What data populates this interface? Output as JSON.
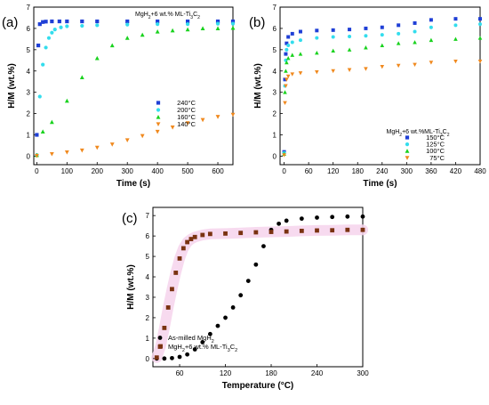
{
  "chart_data": [
    {
      "panel": "(a)",
      "type": "scatter",
      "title": "",
      "annotation": "MgH2+6 wt.% ML-Ti3C2",
      "xlabel": "Time (s)",
      "ylabel": "H/M (wt.%)",
      "xlim": [
        -10,
        650
      ],
      "ylim": [
        -0.4,
        7
      ],
      "xticks": [
        0,
        100,
        200,
        300,
        400,
        500,
        600
      ],
      "yticks": [
        0,
        1,
        2,
        3,
        4,
        5,
        6,
        7
      ],
      "legend": "bottom-right",
      "series": [
        {
          "name": "240°C",
          "color": "#1f3fd6",
          "marker": "square",
          "x": [
            0,
            5,
            10,
            20,
            30,
            50,
            75,
            100,
            150,
            200,
            300,
            400,
            500,
            600,
            650
          ],
          "y": [
            1.0,
            5.2,
            6.2,
            6.3,
            6.32,
            6.33,
            6.33,
            6.33,
            6.33,
            6.33,
            6.33,
            6.33,
            6.33,
            6.33,
            6.33
          ]
        },
        {
          "name": "200°C",
          "color": "#33dded",
          "marker": "circle",
          "x": [
            0,
            10,
            20,
            30,
            40,
            50,
            60,
            80,
            100,
            150,
            200,
            300,
            400,
            500,
            600,
            650
          ],
          "y": [
            0.05,
            2.8,
            4.3,
            5.1,
            5.55,
            5.8,
            5.95,
            6.05,
            6.1,
            6.12,
            6.15,
            6.18,
            6.2,
            6.2,
            6.22,
            6.22
          ]
        },
        {
          "name": "160°C",
          "color": "#19d21e",
          "marker": "triangle-up",
          "x": [
            0,
            20,
            50,
            100,
            150,
            200,
            250,
            300,
            350,
            400,
            450,
            500,
            550,
            600,
            650
          ],
          "y": [
            0.05,
            1.15,
            1.6,
            2.6,
            3.7,
            4.6,
            5.2,
            5.55,
            5.7,
            5.85,
            5.9,
            5.95,
            6.0,
            6.0,
            6.02
          ]
        },
        {
          "name": "140°C",
          "color": "#f0891e",
          "marker": "triangle-down",
          "x": [
            0,
            50,
            100,
            150,
            200,
            250,
            300,
            350,
            400,
            450,
            500,
            550,
            600,
            650
          ],
          "y": [
            0.02,
            0.1,
            0.18,
            0.27,
            0.4,
            0.55,
            0.75,
            0.95,
            1.15,
            1.35,
            1.55,
            1.7,
            1.85,
            1.95
          ]
        }
      ]
    },
    {
      "panel": "(b)",
      "type": "scatter",
      "title": "",
      "annotation": "MgH2+6 wt.%ML-Ti3C2",
      "xlabel": "Time (s)",
      "ylabel": "H/M (wt.%)",
      "xlim": [
        -10,
        480
      ],
      "ylim": [
        -0.4,
        7
      ],
      "xticks": [
        0,
        60,
        120,
        180,
        240,
        300,
        360,
        420,
        480
      ],
      "yticks": [
        0,
        1,
        2,
        3,
        4,
        5,
        6,
        7
      ],
      "legend": "bottom-right",
      "series": [
        {
          "name": "150°C",
          "color": "#1f3fd6",
          "marker": "square",
          "x": [
            0,
            2,
            4,
            6,
            10,
            20,
            40,
            80,
            120,
            160,
            200,
            240,
            280,
            320,
            360,
            420,
            480
          ],
          "y": [
            0.2,
            3.6,
            4.8,
            5.3,
            5.6,
            5.75,
            5.85,
            5.9,
            5.92,
            5.95,
            6.0,
            6.05,
            6.15,
            6.25,
            6.4,
            6.45,
            6.45
          ]
        },
        {
          "name": "125°C",
          "color": "#33dded",
          "marker": "circle",
          "x": [
            0,
            2,
            4,
            6,
            10,
            20,
            40,
            80,
            120,
            160,
            200,
            240,
            280,
            320,
            360,
            420,
            480
          ],
          "y": [
            0.15,
            3.3,
            4.5,
            5.0,
            5.2,
            5.35,
            5.45,
            5.55,
            5.6,
            5.62,
            5.65,
            5.7,
            5.75,
            5.85,
            6.05,
            6.15,
            6.2
          ]
        },
        {
          "name": "100°C",
          "color": "#19d21e",
          "marker": "triangle-up",
          "x": [
            0,
            2,
            4,
            6,
            10,
            20,
            40,
            80,
            120,
            160,
            200,
            240,
            280,
            320,
            360,
            420,
            480
          ],
          "y": [
            0.1,
            3.0,
            4.0,
            4.4,
            4.6,
            4.75,
            4.8,
            4.85,
            4.95,
            5.0,
            5.1,
            5.2,
            5.3,
            5.35,
            5.45,
            5.5,
            5.55
          ]
        },
        {
          "name": "75°C",
          "color": "#f0891e",
          "marker": "triangle-down",
          "x": [
            0,
            2,
            4,
            6,
            10,
            20,
            40,
            80,
            120,
            160,
            200,
            240,
            280,
            320,
            360,
            420,
            480
          ],
          "y": [
            0.05,
            2.5,
            3.3,
            3.6,
            3.75,
            3.85,
            3.9,
            3.95,
            4.0,
            4.05,
            4.1,
            4.2,
            4.25,
            4.3,
            4.4,
            4.45,
            4.45
          ]
        }
      ]
    },
    {
      "panel": "(c)",
      "type": "scatter",
      "title": "",
      "xlabel": "Temperature (°C)",
      "ylabel": "H/M (wt.%)",
      "xlim": [
        25,
        300
      ],
      "ylim": [
        -0.4,
        7.4
      ],
      "xticks": [
        60,
        120,
        180,
        240,
        300
      ],
      "yticks": [
        0,
        1,
        2,
        3,
        4,
        5,
        6,
        7
      ],
      "legend": "bottom-right",
      "series": [
        {
          "name": "As-milled MgH2",
          "color": "#000000",
          "marker": "circle",
          "x": [
            30,
            40,
            50,
            60,
            70,
            80,
            90,
            100,
            110,
            120,
            130,
            140,
            150,
            160,
            170,
            180,
            190,
            200,
            220,
            240,
            260,
            280,
            300
          ],
          "y": [
            0,
            0,
            0.02,
            0.08,
            0.2,
            0.45,
            0.8,
            1.2,
            1.6,
            2.0,
            2.5,
            3.1,
            3.8,
            4.6,
            5.5,
            6.3,
            6.6,
            6.75,
            6.85,
            6.9,
            6.93,
            6.95,
            6.95
          ]
        },
        {
          "name": "MgH2+6 wt.% ML-Ti3C2",
          "color": "#7a3211",
          "marker": "square",
          "x": [
            30,
            35,
            40,
            45,
            50,
            55,
            60,
            65,
            70,
            75,
            80,
            90,
            100,
            120,
            140,
            160,
            180,
            200,
            220,
            240,
            260,
            280,
            300
          ],
          "y": [
            0.05,
            0.6,
            1.5,
            2.5,
            3.4,
            4.2,
            4.9,
            5.4,
            5.7,
            5.85,
            5.95,
            6.05,
            6.1,
            6.12,
            6.15,
            6.18,
            6.2,
            6.22,
            6.25,
            6.27,
            6.28,
            6.3,
            6.3
          ]
        }
      ]
    }
  ]
}
